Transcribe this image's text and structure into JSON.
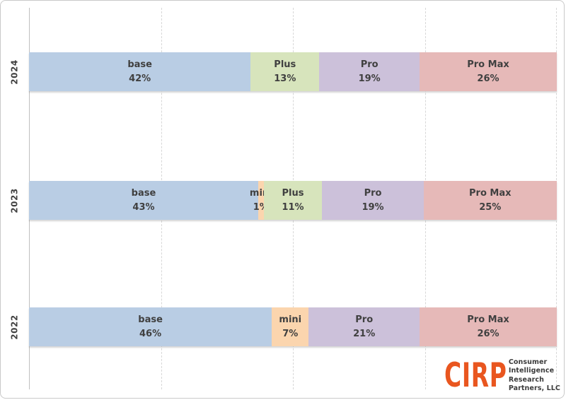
{
  "chart_data": {
    "type": "bar",
    "subtype": "100-percent-stacked-horizontal",
    "orientation": "horizontal",
    "title": "",
    "xlabel": "",
    "ylabel": "",
    "xlim": [
      0,
      100
    ],
    "value_format": "percent",
    "legend": "none",
    "grid": {
      "vertical_dashed_lines_pct": [
        25,
        50,
        75,
        100
      ],
      "solid_axis_at_pct": 0
    },
    "categories": [
      "2024",
      "2023",
      "2022"
    ],
    "series": [
      {
        "name": "base",
        "values": [
          42,
          43,
          46
        ]
      },
      {
        "name": "mini",
        "values": [
          0,
          1,
          7
        ]
      },
      {
        "name": "Plus",
        "values": [
          13,
          11,
          0
        ]
      },
      {
        "name": "Pro",
        "values": [
          19,
          19,
          21
        ]
      },
      {
        "name": "Pro Max",
        "values": [
          26,
          25,
          26
        ]
      }
    ],
    "colors": {
      "base": "#b9cde4",
      "mini": "#fbd5ae",
      "Plus": "#d7e4bc",
      "Pro": "#ccc1da",
      "Pro Max": "#e6b9b8"
    },
    "label_color": "#404040",
    "gridline_color": "#d7d7d7",
    "axis_line_color": "#bfbfbf",
    "rows": [
      {
        "year": "2024",
        "segments": [
          {
            "label": "base",
            "pct": 42
          },
          {
            "label": "Plus",
            "pct": 13
          },
          {
            "label": "Pro",
            "pct": 19
          },
          {
            "label": "Pro Max",
            "pct": 26
          }
        ]
      },
      {
        "year": "2023",
        "segments": [
          {
            "label": "base",
            "pct": 43
          },
          {
            "label": "mini",
            "pct": 1
          },
          {
            "label": "Plus",
            "pct": 11
          },
          {
            "label": "Pro",
            "pct": 19
          },
          {
            "label": "Pro Max",
            "pct": 25
          }
        ]
      },
      {
        "year": "2022",
        "segments": [
          {
            "label": "base",
            "pct": 46
          },
          {
            "label": "mini",
            "pct": 7
          },
          {
            "label": "Pro",
            "pct": 21
          },
          {
            "label": "Pro Max",
            "pct": 26
          }
        ]
      }
    ]
  },
  "logo": {
    "acronym": "CIRP",
    "lines": [
      "Consumer",
      "Intelligence",
      "Research",
      "Partners, LLC"
    ],
    "accent_color": "#e9561f",
    "text_color": "#3b3b3b"
  }
}
